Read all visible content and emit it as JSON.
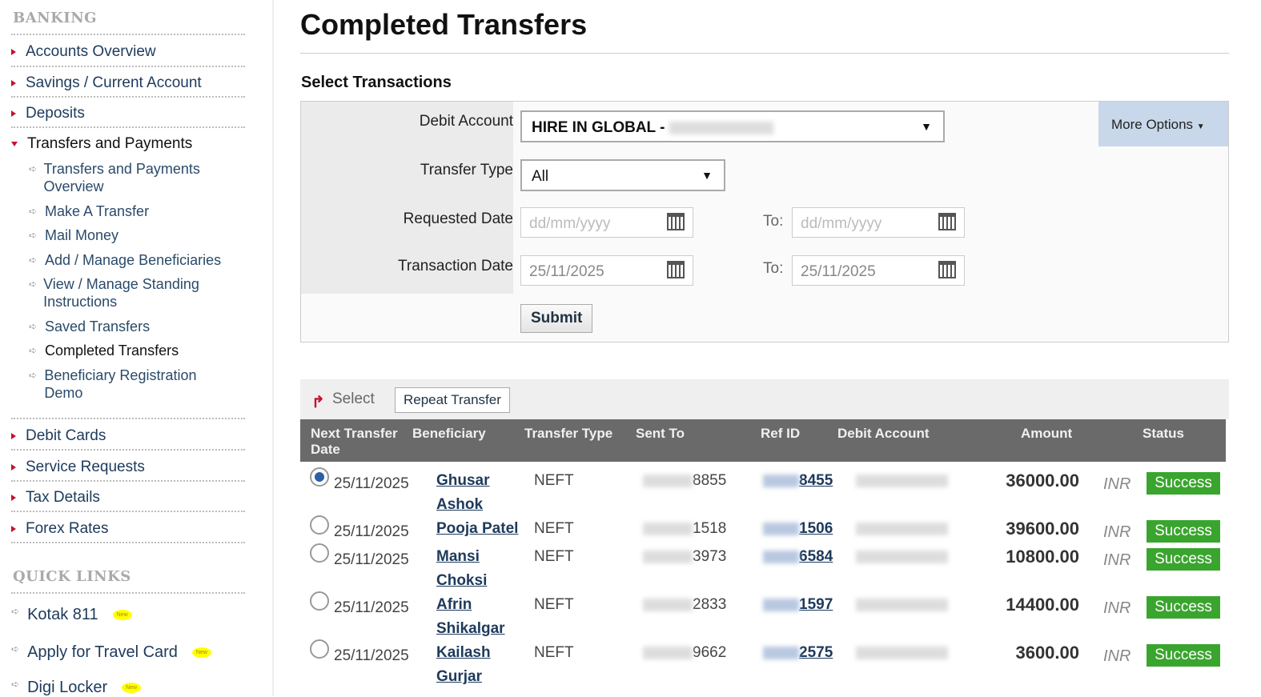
{
  "sidebar": {
    "banking_title": "BANKING",
    "items": [
      {
        "label": "Accounts Overview"
      },
      {
        "label": "Savings / Current Account"
      },
      {
        "label": "Deposits"
      },
      {
        "label": "Transfers and Payments"
      }
    ],
    "sub_items": [
      {
        "label": "Transfers and Payments Overview"
      },
      {
        "label": "Make A Transfer"
      },
      {
        "label": "Mail Money"
      },
      {
        "label": "Add / Manage Beneficiaries"
      },
      {
        "label": "View / Manage Standing Instructions"
      },
      {
        "label": "Saved Transfers"
      },
      {
        "label": "Completed Transfers"
      },
      {
        "label": "Beneficiary Registration Demo"
      }
    ],
    "items2": [
      {
        "label": "Debit Cards"
      },
      {
        "label": "Service Requests"
      },
      {
        "label": "Tax Details"
      },
      {
        "label": "Forex Rates"
      }
    ],
    "quick_links_title": "QUICK LINKS",
    "quick_links": [
      {
        "label": "Kotak 811",
        "badge": "New"
      },
      {
        "label": "Apply for Travel Card",
        "badge": "New"
      },
      {
        "label": "Digi Locker",
        "badge": "New"
      }
    ]
  },
  "page": {
    "title": "Completed Transfers",
    "section": "Select Transactions"
  },
  "form": {
    "debit_account_label": "Debit Account",
    "debit_account_value": "HIRE IN GLOBAL -",
    "transfer_type_label": "Transfer Type",
    "transfer_type_value": "All",
    "requested_date_label": "Requested Date",
    "requested_from_placeholder": "dd/mm/yyyy",
    "requested_to_placeholder": "dd/mm/yyyy",
    "transaction_date_label": "Transaction Date",
    "transaction_from": "25/11/2025",
    "transaction_to": "25/11/2025",
    "to_label": "To:",
    "submit": "Submit",
    "more_options": "More Options"
  },
  "toolbar": {
    "select": "Select",
    "repeat": "Repeat Transfer"
  },
  "table": {
    "headers": [
      "Next Transfer Date",
      "Beneficiary",
      "Transfer Type",
      "Sent To",
      "Ref ID",
      "Debit Account",
      "Amount",
      "Status"
    ],
    "rows": [
      {
        "date": "25/11/2025",
        "ben1": "Ghusar",
        "ben2": "Ashok",
        "type": "NEFT",
        "sent": "8855",
        "ref": "8455",
        "amount": "36000.00",
        "cur": "INR",
        "status": "Success",
        "selected": true
      },
      {
        "date": "25/11/2025",
        "ben1": "Pooja Patel",
        "ben2": "",
        "type": "NEFT",
        "sent": "1518",
        "ref": "1506",
        "amount": "39600.00",
        "cur": "INR",
        "status": "Success"
      },
      {
        "date": "25/11/2025",
        "ben1": "Mansi",
        "ben2": "Choksi",
        "type": "NEFT",
        "sent": "3973",
        "ref": "6584",
        "amount": "10800.00",
        "cur": "INR",
        "status": "Success"
      },
      {
        "date": "25/11/2025",
        "ben1": "Afrin",
        "ben2": "Shikalgar",
        "type": "NEFT",
        "sent": "2833",
        "ref": "1597",
        "amount": "14400.00",
        "cur": "INR",
        "status": "Success"
      },
      {
        "date": "25/11/2025",
        "ben1": "Kailash",
        "ben2": "Gurjar",
        "type": "NEFT",
        "sent": "9662",
        "ref": "2575",
        "amount": "3600.00",
        "cur": "INR",
        "status": "Success"
      }
    ]
  },
  "colors": {
    "accent_red": "#c4122f",
    "link": "#1d3a5c",
    "success": "#3aa52e",
    "header_bg": "#6a6a6a"
  }
}
